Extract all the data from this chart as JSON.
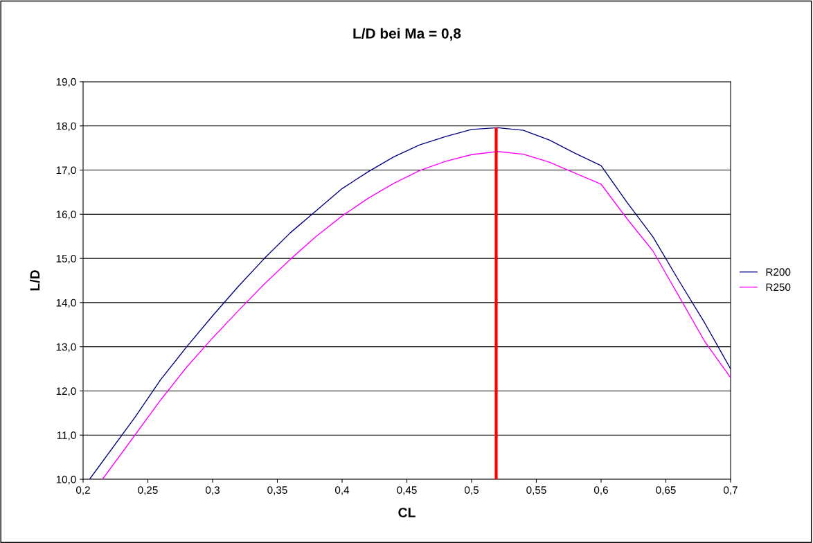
{
  "chart_data": {
    "type": "line",
    "title": "L/D bei Ma = 0,8",
    "xlabel": "CL",
    "ylabel": "L/D",
    "xlim": [
      0.2,
      0.7
    ],
    "ylim": [
      10,
      19
    ],
    "xticks": [
      {
        "value": 0.2,
        "label": "0,2"
      },
      {
        "value": 0.25,
        "label": "0,25"
      },
      {
        "value": 0.3,
        "label": "0,3"
      },
      {
        "value": 0.35,
        "label": "0,35"
      },
      {
        "value": 0.4,
        "label": "0,4"
      },
      {
        "value": 0.45,
        "label": "0,45"
      },
      {
        "value": 0.5,
        "label": "0,5"
      },
      {
        "value": 0.55,
        "label": "0,55"
      },
      {
        "value": 0.6,
        "label": "0,6"
      },
      {
        "value": 0.65,
        "label": "0,65"
      },
      {
        "value": 0.7,
        "label": "0,7"
      }
    ],
    "yticks": [
      {
        "value": 10,
        "label": "10,0"
      },
      {
        "value": 11,
        "label": "11,0"
      },
      {
        "value": 12,
        "label": "12,0"
      },
      {
        "value": 13,
        "label": "13,0"
      },
      {
        "value": 14,
        "label": "14,0"
      },
      {
        "value": 15,
        "label": "15,0"
      },
      {
        "value": 16,
        "label": "16,0"
      },
      {
        "value": 17,
        "label": "17,0"
      },
      {
        "value": 18,
        "label": "18,0"
      },
      {
        "value": 19,
        "label": "19,0"
      }
    ],
    "grid": "y",
    "legend": "right",
    "marker": "none",
    "line_style": "solid",
    "series": [
      {
        "name": "R200",
        "color": "#000080",
        "x": [
          0.205,
          0.24,
          0.26,
          0.28,
          0.3,
          0.32,
          0.34,
          0.36,
          0.38,
          0.4,
          0.42,
          0.44,
          0.46,
          0.48,
          0.5,
          0.52,
          0.54,
          0.56,
          0.58,
          0.6,
          0.62,
          0.64,
          0.66,
          0.68,
          0.7
        ],
        "values": [
          10.0,
          11.4,
          12.26,
          13.0,
          13.7,
          14.37,
          15.0,
          15.58,
          16.08,
          16.58,
          16.96,
          17.3,
          17.57,
          17.76,
          17.92,
          17.96,
          17.9,
          17.68,
          17.38,
          17.1,
          16.27,
          15.49,
          14.5,
          13.54,
          12.5
        ]
      },
      {
        "name": "R250",
        "color": "#ff00ff",
        "x": [
          0.215,
          0.24,
          0.26,
          0.28,
          0.3,
          0.32,
          0.34,
          0.36,
          0.38,
          0.4,
          0.42,
          0.44,
          0.46,
          0.48,
          0.5,
          0.52,
          0.54,
          0.56,
          0.58,
          0.6,
          0.62,
          0.64,
          0.66,
          0.68,
          0.7
        ],
        "values": [
          10.0,
          11.0,
          11.8,
          12.54,
          13.2,
          13.82,
          14.42,
          14.98,
          15.5,
          15.96,
          16.36,
          16.7,
          16.99,
          17.2,
          17.35,
          17.42,
          17.36,
          17.18,
          16.93,
          16.68,
          15.9,
          15.17,
          14.15,
          13.12,
          12.3
        ]
      },
      {
        "color": "#ff0000",
        "x": [
          0.519,
          0.519
        ],
        "values": [
          10.0,
          17.93
        ]
      }
    ]
  }
}
